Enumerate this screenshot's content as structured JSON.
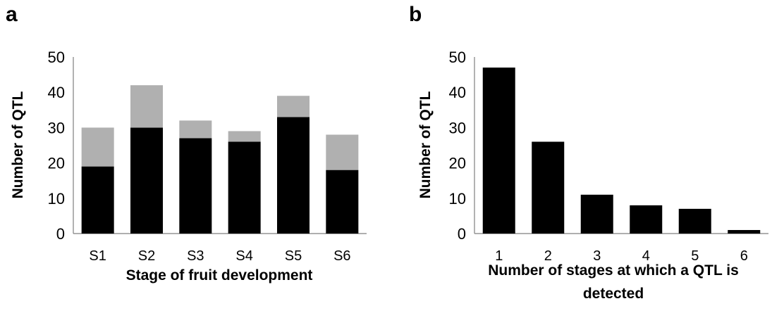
{
  "panels": [
    "a",
    "b"
  ],
  "chart_data": [
    {
      "type": "bar",
      "stacked": true,
      "categories": [
        "S1",
        "S2",
        "S3",
        "S4",
        "S5",
        "S6"
      ],
      "series": [
        {
          "values": [
            19,
            30,
            27,
            26,
            33,
            18
          ],
          "color": "#000000"
        },
        {
          "values": [
            11,
            12,
            5,
            3,
            6,
            10
          ],
          "color": "#b0b0b0"
        }
      ],
      "yticks": [
        "0",
        "10",
        "20",
        "30",
        "40",
        "50"
      ],
      "ylim": [
        0,
        50
      ],
      "xlabel": "Stage of fruit development",
      "ylabel": "Number of QTL",
      "grid": false
    },
    {
      "type": "bar",
      "categories": [
        "1",
        "2",
        "3",
        "4",
        "5",
        "6"
      ],
      "series": [
        {
          "values": [
            47,
            26,
            11,
            8,
            7,
            1
          ],
          "color": "#000000"
        }
      ],
      "yticks": [
        "0",
        "10",
        "20",
        "30",
        "40",
        "50"
      ],
      "ylim": [
        0,
        50
      ],
      "xlabel_lines": [
        "Number of stages at which a QTL is",
        "detected"
      ],
      "ylabel": "Number of QTL",
      "grid": false
    }
  ]
}
